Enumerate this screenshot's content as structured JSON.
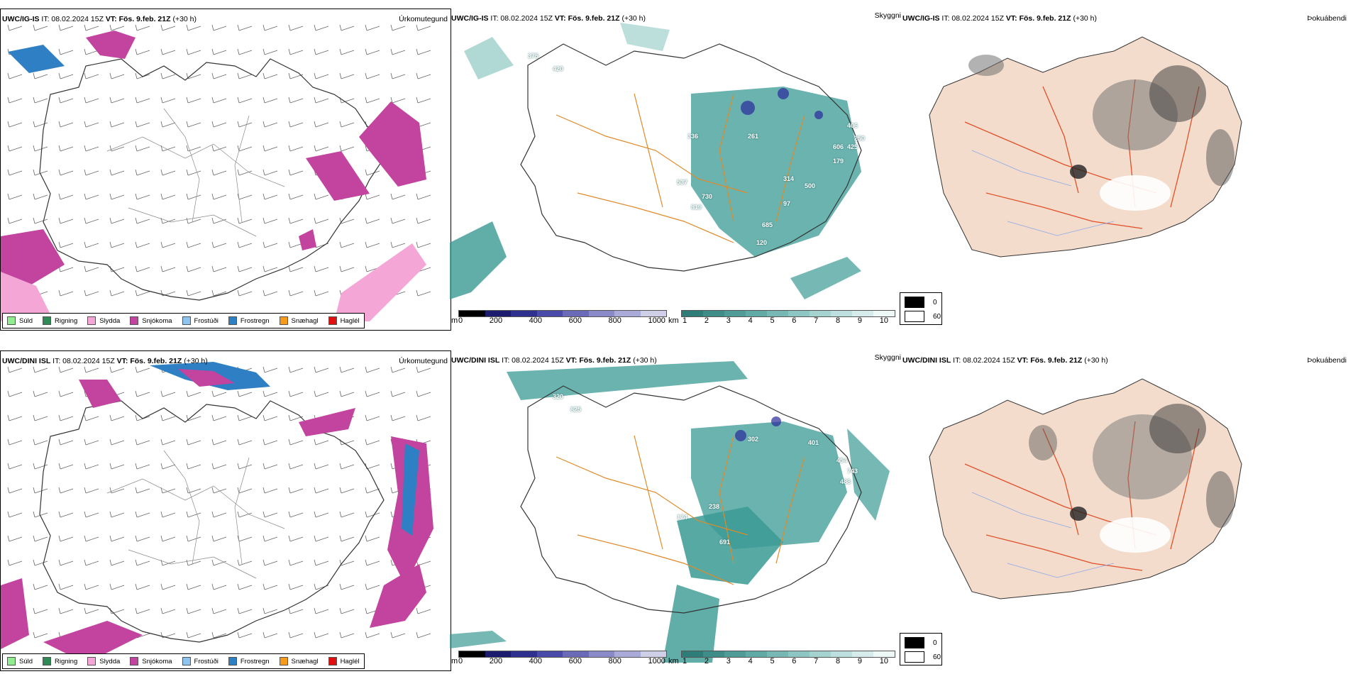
{
  "rows": [
    {
      "model": "UWC/IG-IS",
      "it_label": "IT: 08.02.2024 15Z",
      "vt_label": "VT: Fös. 9.feb. 21Z",
      "lead": "(+30 h)",
      "precip_title": "Úrkomutegund",
      "vis_title": "Skyggni",
      "fog_title": "Þokuábendi",
      "vis_labels": [
        "375",
        "420",
        "336",
        "261",
        "406",
        "250",
        "606",
        "425",
        "179",
        "314",
        "500",
        "730",
        "819",
        "97",
        "685",
        "120",
        "537"
      ]
    },
    {
      "model": "UWC/DINI ISL",
      "it_label": "IT: 08.02.2024 15Z",
      "vt_label": "VT: Fös. 9.feb. 21Z",
      "lead": "(+30 h)",
      "precip_title": "Úrkomutegund",
      "vis_title": "Skyggni",
      "fog_title": "Þokuábendi",
      "vis_labels": [
        "320",
        "825",
        "302",
        "454",
        "743",
        "488",
        "238",
        "691",
        "174",
        "401"
      ]
    }
  ],
  "precip_legend": [
    {
      "label": "Súld",
      "color": "#90ee90"
    },
    {
      "label": "Rigning",
      "color": "#2e8b57"
    },
    {
      "label": "Slydda",
      "color": "#f4a6d7"
    },
    {
      "label": "Snjókoma",
      "color": "#c2449e"
    },
    {
      "label": "Frostúði",
      "color": "#8ec5f0"
    },
    {
      "label": "Frostregn",
      "color": "#2f7fc4"
    },
    {
      "label": "Snæhagl",
      "color": "#f59a1a"
    },
    {
      "label": "Haglél",
      "color": "#e01010"
    }
  ],
  "vis_scale_m": {
    "unit": "m",
    "ticks": [
      "0",
      "200",
      "400",
      "600",
      "800",
      "1000"
    ]
  },
  "vis_scale_km": {
    "unit": "km",
    "ticks": [
      "1",
      "2",
      "3",
      "4",
      "5",
      "6",
      "7",
      "8",
      "9",
      "10"
    ]
  },
  "fog_legend": [
    "0",
    "60"
  ],
  "colors": {
    "snow": "#c2449e",
    "slydda": "#f4a6d7",
    "frostregn": "#2f7fc4",
    "rain": "#2e8b57",
    "teal": "#3a9a94",
    "road": "#e08a2a",
    "land_fog": "#f3dccb",
    "road_red": "#e0502a"
  }
}
